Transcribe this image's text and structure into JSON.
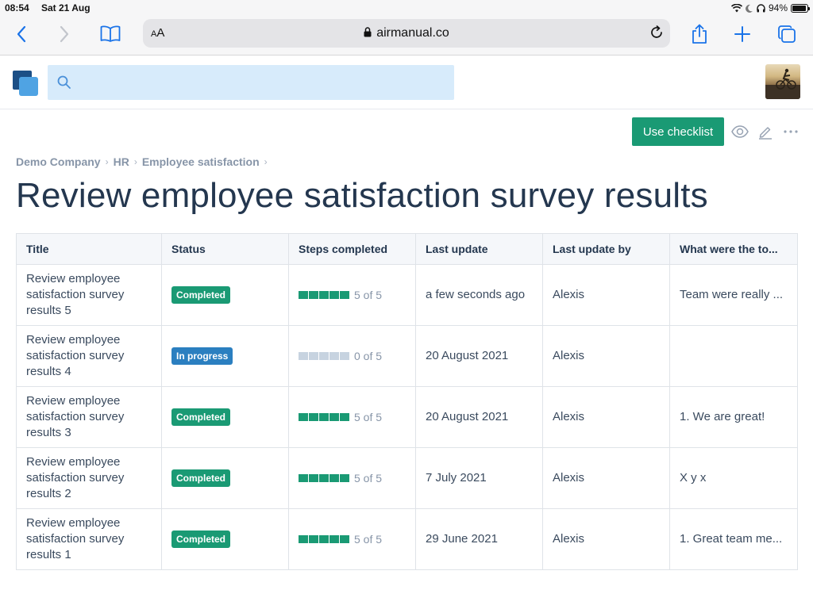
{
  "status_bar": {
    "time": "08:54",
    "date": "Sat 21 Aug",
    "battery": "94%",
    "battery_level": 0.94
  },
  "browser": {
    "text_size_label": "AA",
    "url": "airmanual.co"
  },
  "app": {
    "search": {
      "placeholder": ""
    }
  },
  "actions": {
    "use_checklist": "Use checklist"
  },
  "breadcrumb": [
    "Demo Company",
    "HR",
    "Employee satisfaction"
  ],
  "page_title": "Review employee satisfaction survey results",
  "colors": {
    "completed": "#1a9a74",
    "in_progress": "#2b7fc0",
    "step_done": "#1a9a74",
    "step_todo": "#c7d3e0"
  },
  "table": {
    "columns": [
      "Title",
      "Status",
      "Steps completed",
      "Last update",
      "Last update by",
      "What were the to..."
    ],
    "rows": [
      {
        "title": "Review employee satisfaction survey results 5",
        "status": "Completed",
        "status_kind": "completed",
        "steps_done": 5,
        "steps_total": 5,
        "steps_label": "5 of 5",
        "last_update": "a few seconds ago",
        "updated_by": "Alexis",
        "notes": "Team were really ..."
      },
      {
        "title": "Review employee satisfaction survey results 4",
        "status": "In progress",
        "status_kind": "inprogress",
        "steps_done": 0,
        "steps_total": 5,
        "steps_label": "0 of 5",
        "last_update": "20 August 2021",
        "updated_by": "Alexis",
        "notes": ""
      },
      {
        "title": "Review employee satisfaction survey results 3",
        "status": "Completed",
        "status_kind": "completed",
        "steps_done": 5,
        "steps_total": 5,
        "steps_label": "5 of 5",
        "last_update": "20 August 2021",
        "updated_by": "Alexis",
        "notes": "1. We are great!"
      },
      {
        "title": "Review employee satisfaction survey results 2",
        "status": "Completed",
        "status_kind": "completed",
        "steps_done": 5,
        "steps_total": 5,
        "steps_label": "5 of 5",
        "last_update": "7 July 2021",
        "updated_by": "Alexis",
        "notes": "X y x"
      },
      {
        "title": "Review employee satisfaction survey results 1",
        "status": "Completed",
        "status_kind": "completed",
        "steps_done": 5,
        "steps_total": 5,
        "steps_label": "5 of 5",
        "last_update": "29 June 2021",
        "updated_by": "Alexis",
        "notes": "1. Great team me..."
      }
    ]
  }
}
